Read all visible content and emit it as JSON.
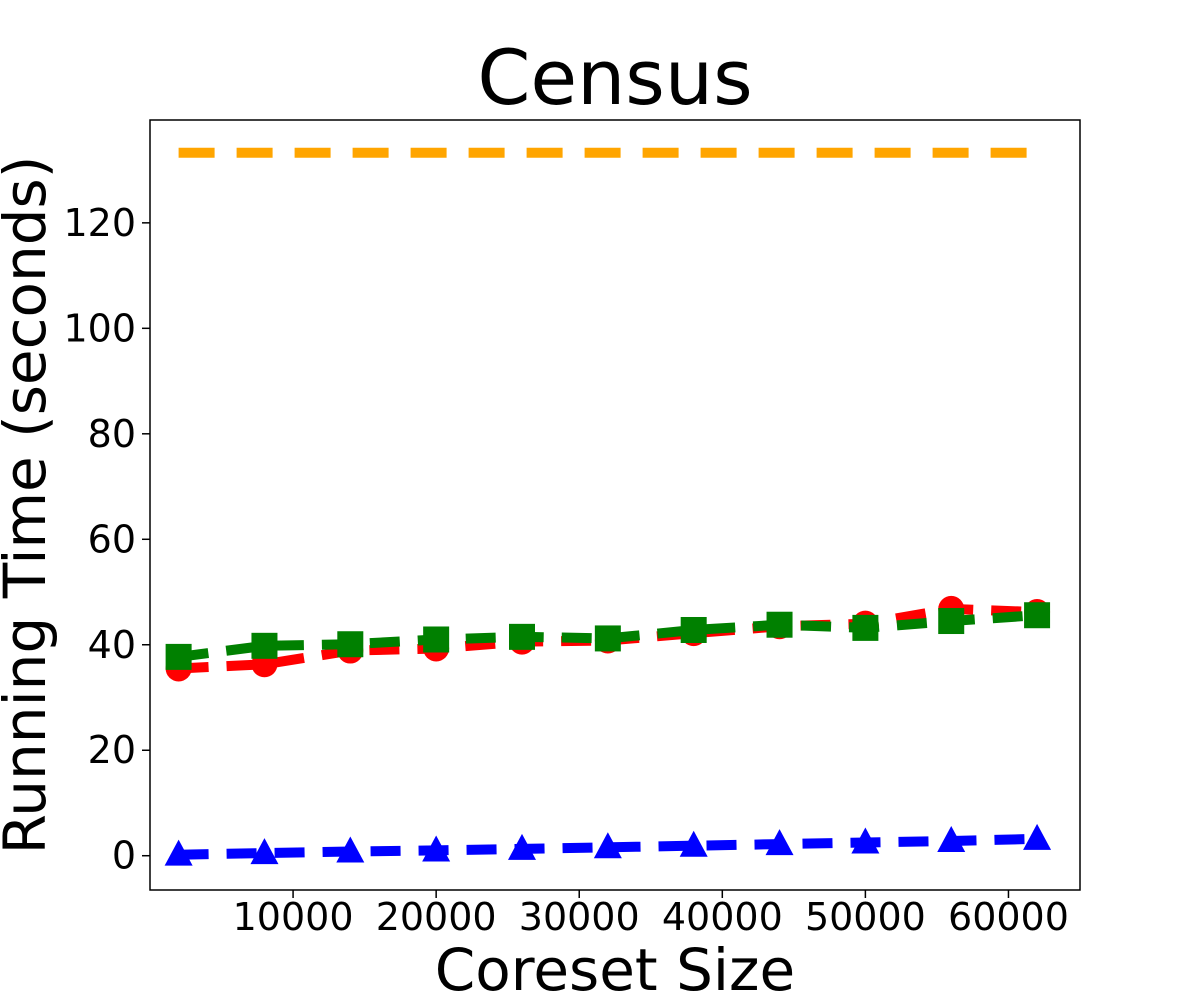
{
  "chart_data": {
    "type": "line",
    "title": "Census",
    "xlabel": "Coreset Size",
    "ylabel": "Running Time (seconds)",
    "xlim": [
      0,
      65000
    ],
    "ylim": [
      -6.5,
      139.5
    ],
    "xticks": [
      10000,
      20000,
      30000,
      40000,
      50000,
      60000
    ],
    "yticks": [
      0,
      20,
      40,
      60,
      80,
      100,
      120
    ],
    "grid": false,
    "legend": "none",
    "x": [
      2000,
      8000,
      14000,
      20000,
      26000,
      32000,
      38000,
      44000,
      50000,
      56000,
      62000
    ],
    "series": [
      {
        "color": "#ffa500",
        "marker": "none",
        "linestyle": "dashed",
        "values": [
          133.3,
          133.3,
          133.3,
          133.3,
          133.3,
          133.3,
          133.3,
          133.3,
          133.3,
          133.3,
          133.3
        ]
      },
      {
        "color": "#ff0000",
        "marker": "circle",
        "linestyle": "dashed",
        "values": [
          35.5,
          36.3,
          38.9,
          39.3,
          40.6,
          40.8,
          42.2,
          43.5,
          44.0,
          46.8,
          46.2
        ]
      },
      {
        "color": "#008000",
        "marker": "square",
        "linestyle": "dashed",
        "values": [
          37.7,
          39.8,
          40.1,
          41.0,
          41.5,
          41.2,
          42.8,
          43.8,
          43.2,
          44.5,
          45.6
        ]
      },
      {
        "color": "#0000ff",
        "marker": "triangle",
        "linestyle": "dashed",
        "values": [
          0.2,
          0.5,
          0.8,
          1.0,
          1.3,
          1.6,
          1.9,
          2.2,
          2.5,
          2.8,
          3.2
        ]
      }
    ]
  }
}
